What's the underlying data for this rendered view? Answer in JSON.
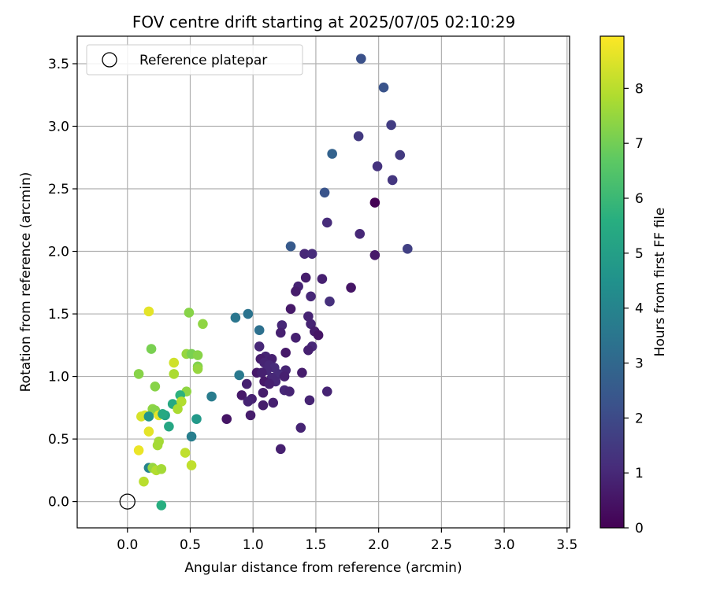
{
  "chart_data": {
    "type": "scatter",
    "title": "FOV centre drift starting at 2025/07/05 02:10:29",
    "xlabel": "Angular distance from reference (arcmin)",
    "ylabel": "Rotation from reference (arcmin)",
    "xlim": [
      -0.4,
      3.52
    ],
    "ylim": [
      -0.21,
      3.72
    ],
    "xticks": [
      "0.0",
      "0.5",
      "1.0",
      "1.5",
      "2.0",
      "2.5",
      "3.0",
      "3.5"
    ],
    "yticks": [
      "0.0",
      "0.5",
      "1.0",
      "1.5",
      "2.0",
      "2.5",
      "3.0",
      "3.5"
    ],
    "grid": true,
    "legend": {
      "location": "top-left",
      "label": "Reference platepar"
    },
    "reference_point": {
      "x": 0.0,
      "y": 0.0
    },
    "colorbar": {
      "label": "Hours from first FF file",
      "colormap": "viridis",
      "range": [
        0,
        8.95
      ],
      "ticks": [
        "0",
        "1",
        "2",
        "3",
        "4",
        "5",
        "6",
        "7",
        "8"
      ]
    },
    "points": [
      [
        1.86,
        3.54,
        2.2
      ],
      [
        2.04,
        3.31,
        2.3
      ],
      [
        1.84,
        2.92,
        1.5
      ],
      [
        2.1,
        3.01,
        1.6
      ],
      [
        1.63,
        2.78,
        2.8
      ],
      [
        1.99,
        2.68,
        1.3
      ],
      [
        2.17,
        2.77,
        1.5
      ],
      [
        2.11,
        2.57,
        1.4
      ],
      [
        1.57,
        2.47,
        2.3
      ],
      [
        1.97,
        2.39,
        0.0
      ],
      [
        1.59,
        2.23,
        1.1
      ],
      [
        1.85,
        2.14,
        1.0
      ],
      [
        2.23,
        2.02,
        1.7
      ],
      [
        1.3,
        2.04,
        2.5
      ],
      [
        1.41,
        1.98,
        1.0
      ],
      [
        1.47,
        1.98,
        1.1
      ],
      [
        1.97,
        1.97,
        0.6
      ],
      [
        1.42,
        1.79,
        0.7
      ],
      [
        1.55,
        1.78,
        0.8
      ],
      [
        1.36,
        1.72,
        0.9
      ],
      [
        1.34,
        1.68,
        0.7
      ],
      [
        1.78,
        1.71,
        0.5
      ],
      [
        1.46,
        1.64,
        1.0
      ],
      [
        1.61,
        1.6,
        1.2
      ],
      [
        1.3,
        1.54,
        0.6
      ],
      [
        0.86,
        1.47,
        3.5
      ],
      [
        0.96,
        1.5,
        3.4
      ],
      [
        1.44,
        1.48,
        0.9
      ],
      [
        1.23,
        1.41,
        1.0
      ],
      [
        1.46,
        1.42,
        0.9
      ],
      [
        1.05,
        1.37,
        3.3
      ],
      [
        1.22,
        1.35,
        0.8
      ],
      [
        1.49,
        1.36,
        0.7
      ],
      [
        1.52,
        1.33,
        0.5
      ],
      [
        1.34,
        1.31,
        0.8
      ],
      [
        1.05,
        1.24,
        1.0
      ],
      [
        1.47,
        1.24,
        1.0
      ],
      [
        1.44,
        1.21,
        0.8
      ],
      [
        1.26,
        1.19,
        0.6
      ],
      [
        1.1,
        1.16,
        0.9
      ],
      [
        1.15,
        1.14,
        0.8
      ],
      [
        1.06,
        1.14,
        0.7
      ],
      [
        1.09,
        1.11,
        0.9
      ],
      [
        1.13,
        1.09,
        1.0
      ],
      [
        1.17,
        1.07,
        1.1
      ],
      [
        1.26,
        1.05,
        0.9
      ],
      [
        1.11,
        1.05,
        1.0
      ],
      [
        1.03,
        1.03,
        0.6
      ],
      [
        1.07,
        1.03,
        0.8
      ],
      [
        1.39,
        1.03,
        0.7
      ],
      [
        1.2,
        1.02,
        1.1
      ],
      [
        1.15,
        0.99,
        1.0
      ],
      [
        1.25,
        1.0,
        0.8
      ],
      [
        1.09,
        0.96,
        0.6
      ],
      [
        1.18,
        0.96,
        1.0
      ],
      [
        1.13,
        0.94,
        0.8
      ],
      [
        0.95,
        0.94,
        0.8
      ],
      [
        1.25,
        0.89,
        1.0
      ],
      [
        1.29,
        0.88,
        0.9
      ],
      [
        0.91,
        0.85,
        0.6
      ],
      [
        1.08,
        0.87,
        0.7
      ],
      [
        1.59,
        0.88,
        0.9
      ],
      [
        0.99,
        0.82,
        0.8
      ],
      [
        0.96,
        0.8,
        0.9
      ],
      [
        1.16,
        0.79,
        0.8
      ],
      [
        1.08,
        0.77,
        0.7
      ],
      [
        1.45,
        0.81,
        0.9
      ],
      [
        0.98,
        0.69,
        0.7
      ],
      [
        0.79,
        0.66,
        0.5
      ],
      [
        1.38,
        0.59,
        0.9
      ],
      [
        1.22,
        0.42,
        0.8
      ],
      [
        0.89,
        1.01,
        3.6
      ],
      [
        0.67,
        0.84,
        3.7
      ],
      [
        0.55,
        0.66,
        4.8
      ],
      [
        0.51,
        0.52,
        3.8
      ],
      [
        0.17,
        1.52,
        8.6
      ],
      [
        0.49,
        1.51,
        7.3
      ],
      [
        0.6,
        1.42,
        7.4
      ],
      [
        0.19,
        1.22,
        7.1
      ],
      [
        0.47,
        1.18,
        7.5
      ],
      [
        0.51,
        1.18,
        7.1
      ],
      [
        0.56,
        1.17,
        7.3
      ],
      [
        0.37,
        1.11,
        8.3
      ],
      [
        0.56,
        1.08,
        7.2
      ],
      [
        0.56,
        1.06,
        7.5
      ],
      [
        0.09,
        1.02,
        7.3
      ],
      [
        0.37,
        1.02,
        7.8
      ],
      [
        0.22,
        0.92,
        7.3
      ],
      [
        0.47,
        0.88,
        7.4
      ],
      [
        0.42,
        0.85,
        5.7
      ],
      [
        0.36,
        0.78,
        5.4
      ],
      [
        0.43,
        0.8,
        7.9
      ],
      [
        0.4,
        0.74,
        7.8
      ],
      [
        0.2,
        0.74,
        7.4
      ],
      [
        0.22,
        0.73,
        7.3
      ],
      [
        0.14,
        0.69,
        8.5
      ],
      [
        0.11,
        0.68,
        8.4
      ],
      [
        0.17,
        0.68,
        4.6
      ],
      [
        0.25,
        0.69,
        8.6
      ],
      [
        0.3,
        0.69,
        5.1
      ],
      [
        0.28,
        0.7,
        5.4
      ],
      [
        0.33,
        0.6,
        5.3
      ],
      [
        0.17,
        0.56,
        8.6
      ],
      [
        0.25,
        0.48,
        7.7
      ],
      [
        0.24,
        0.45,
        7.7
      ],
      [
        0.09,
        0.41,
        8.7
      ],
      [
        0.46,
        0.39,
        8.1
      ],
      [
        0.51,
        0.29,
        8.1
      ],
      [
        0.17,
        0.27,
        4.0
      ],
      [
        0.2,
        0.27,
        7.5
      ],
      [
        0.23,
        0.25,
        7.9
      ],
      [
        0.27,
        0.26,
        7.7
      ],
      [
        0.13,
        0.16,
        8.0
      ],
      [
        0.27,
        -0.03,
        5.6
      ]
    ]
  }
}
